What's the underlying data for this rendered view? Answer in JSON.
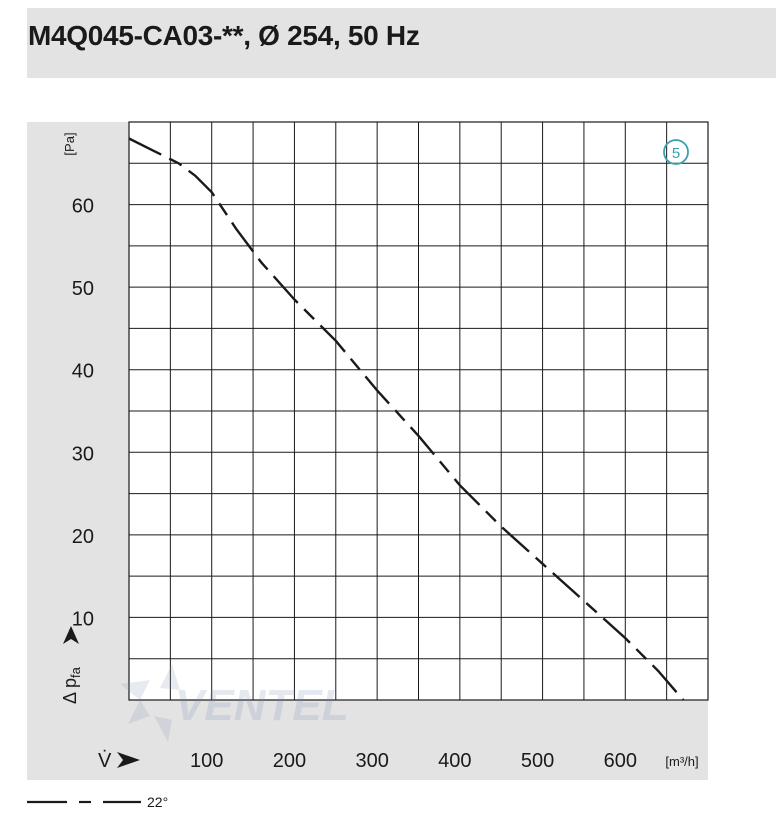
{
  "header": {
    "title": "M4Q045-CA03-**, Ø 254, 50 Hz"
  },
  "chart_data": {
    "type": "line",
    "xlabel": "V̇",
    "x_unit": "[m³/h]",
    "ylabel": "Δ pfa",
    "y_unit": "[Pa]",
    "xlim": [
      0,
      700
    ],
    "ylim": [
      0,
      70
    ],
    "x_ticks": [
      100,
      200,
      300,
      400,
      500,
      600
    ],
    "y_ticks": [
      10,
      20,
      30,
      40,
      50,
      60
    ],
    "grid": true,
    "badge": "5",
    "series": [
      {
        "name": "22°",
        "x": [
          0,
          30,
          60,
          80,
          100,
          130,
          160,
          200,
          250,
          300,
          350,
          400,
          450,
          500,
          550,
          600,
          640,
          670
        ],
        "y": [
          68,
          66.5,
          65,
          63.5,
          61.5,
          57,
          53,
          48.5,
          43.5,
          37.5,
          32,
          26,
          21,
          16.5,
          12,
          7.5,
          3.5,
          0
        ]
      }
    ]
  },
  "watermark": "VENTEL"
}
